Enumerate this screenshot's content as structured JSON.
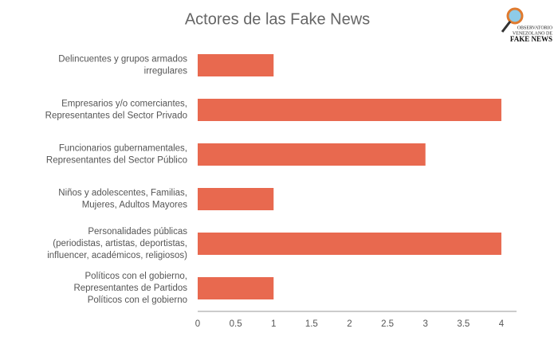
{
  "chart_data": {
    "type": "barh",
    "title": "Actores de las Fake News",
    "categories": [
      "Delincuentes y grupos armados\nirregulares",
      "Empresarios y/o comerciantes,\nRepresentantes del Sector Privado",
      "Funcionarios gubernamentales,\nRepresentantes del Sector Público",
      "Niños y adolescentes, Familias,\nMujeres, Adultos Mayores",
      "Personalidades públicas\n(periodistas, artistas, deportistas,\ninfluencer, académicos, religiosos)",
      "Políticos con el gobierno,\nRepresentantes de Partidos\nPolíticos con el gobierno"
    ],
    "values": [
      1,
      4,
      3,
      1,
      4,
      1
    ],
    "color": "#e8694f",
    "xlim": [
      0,
      4.2
    ],
    "xticks": [
      0,
      0.5,
      1,
      1.5,
      2,
      2.5,
      3,
      3.5,
      4
    ],
    "grid": false
  },
  "logo": {
    "line1": "OBSERVATORIO",
    "line2": "VENEZOLANO DE",
    "line3": "FAKE NEWS"
  }
}
